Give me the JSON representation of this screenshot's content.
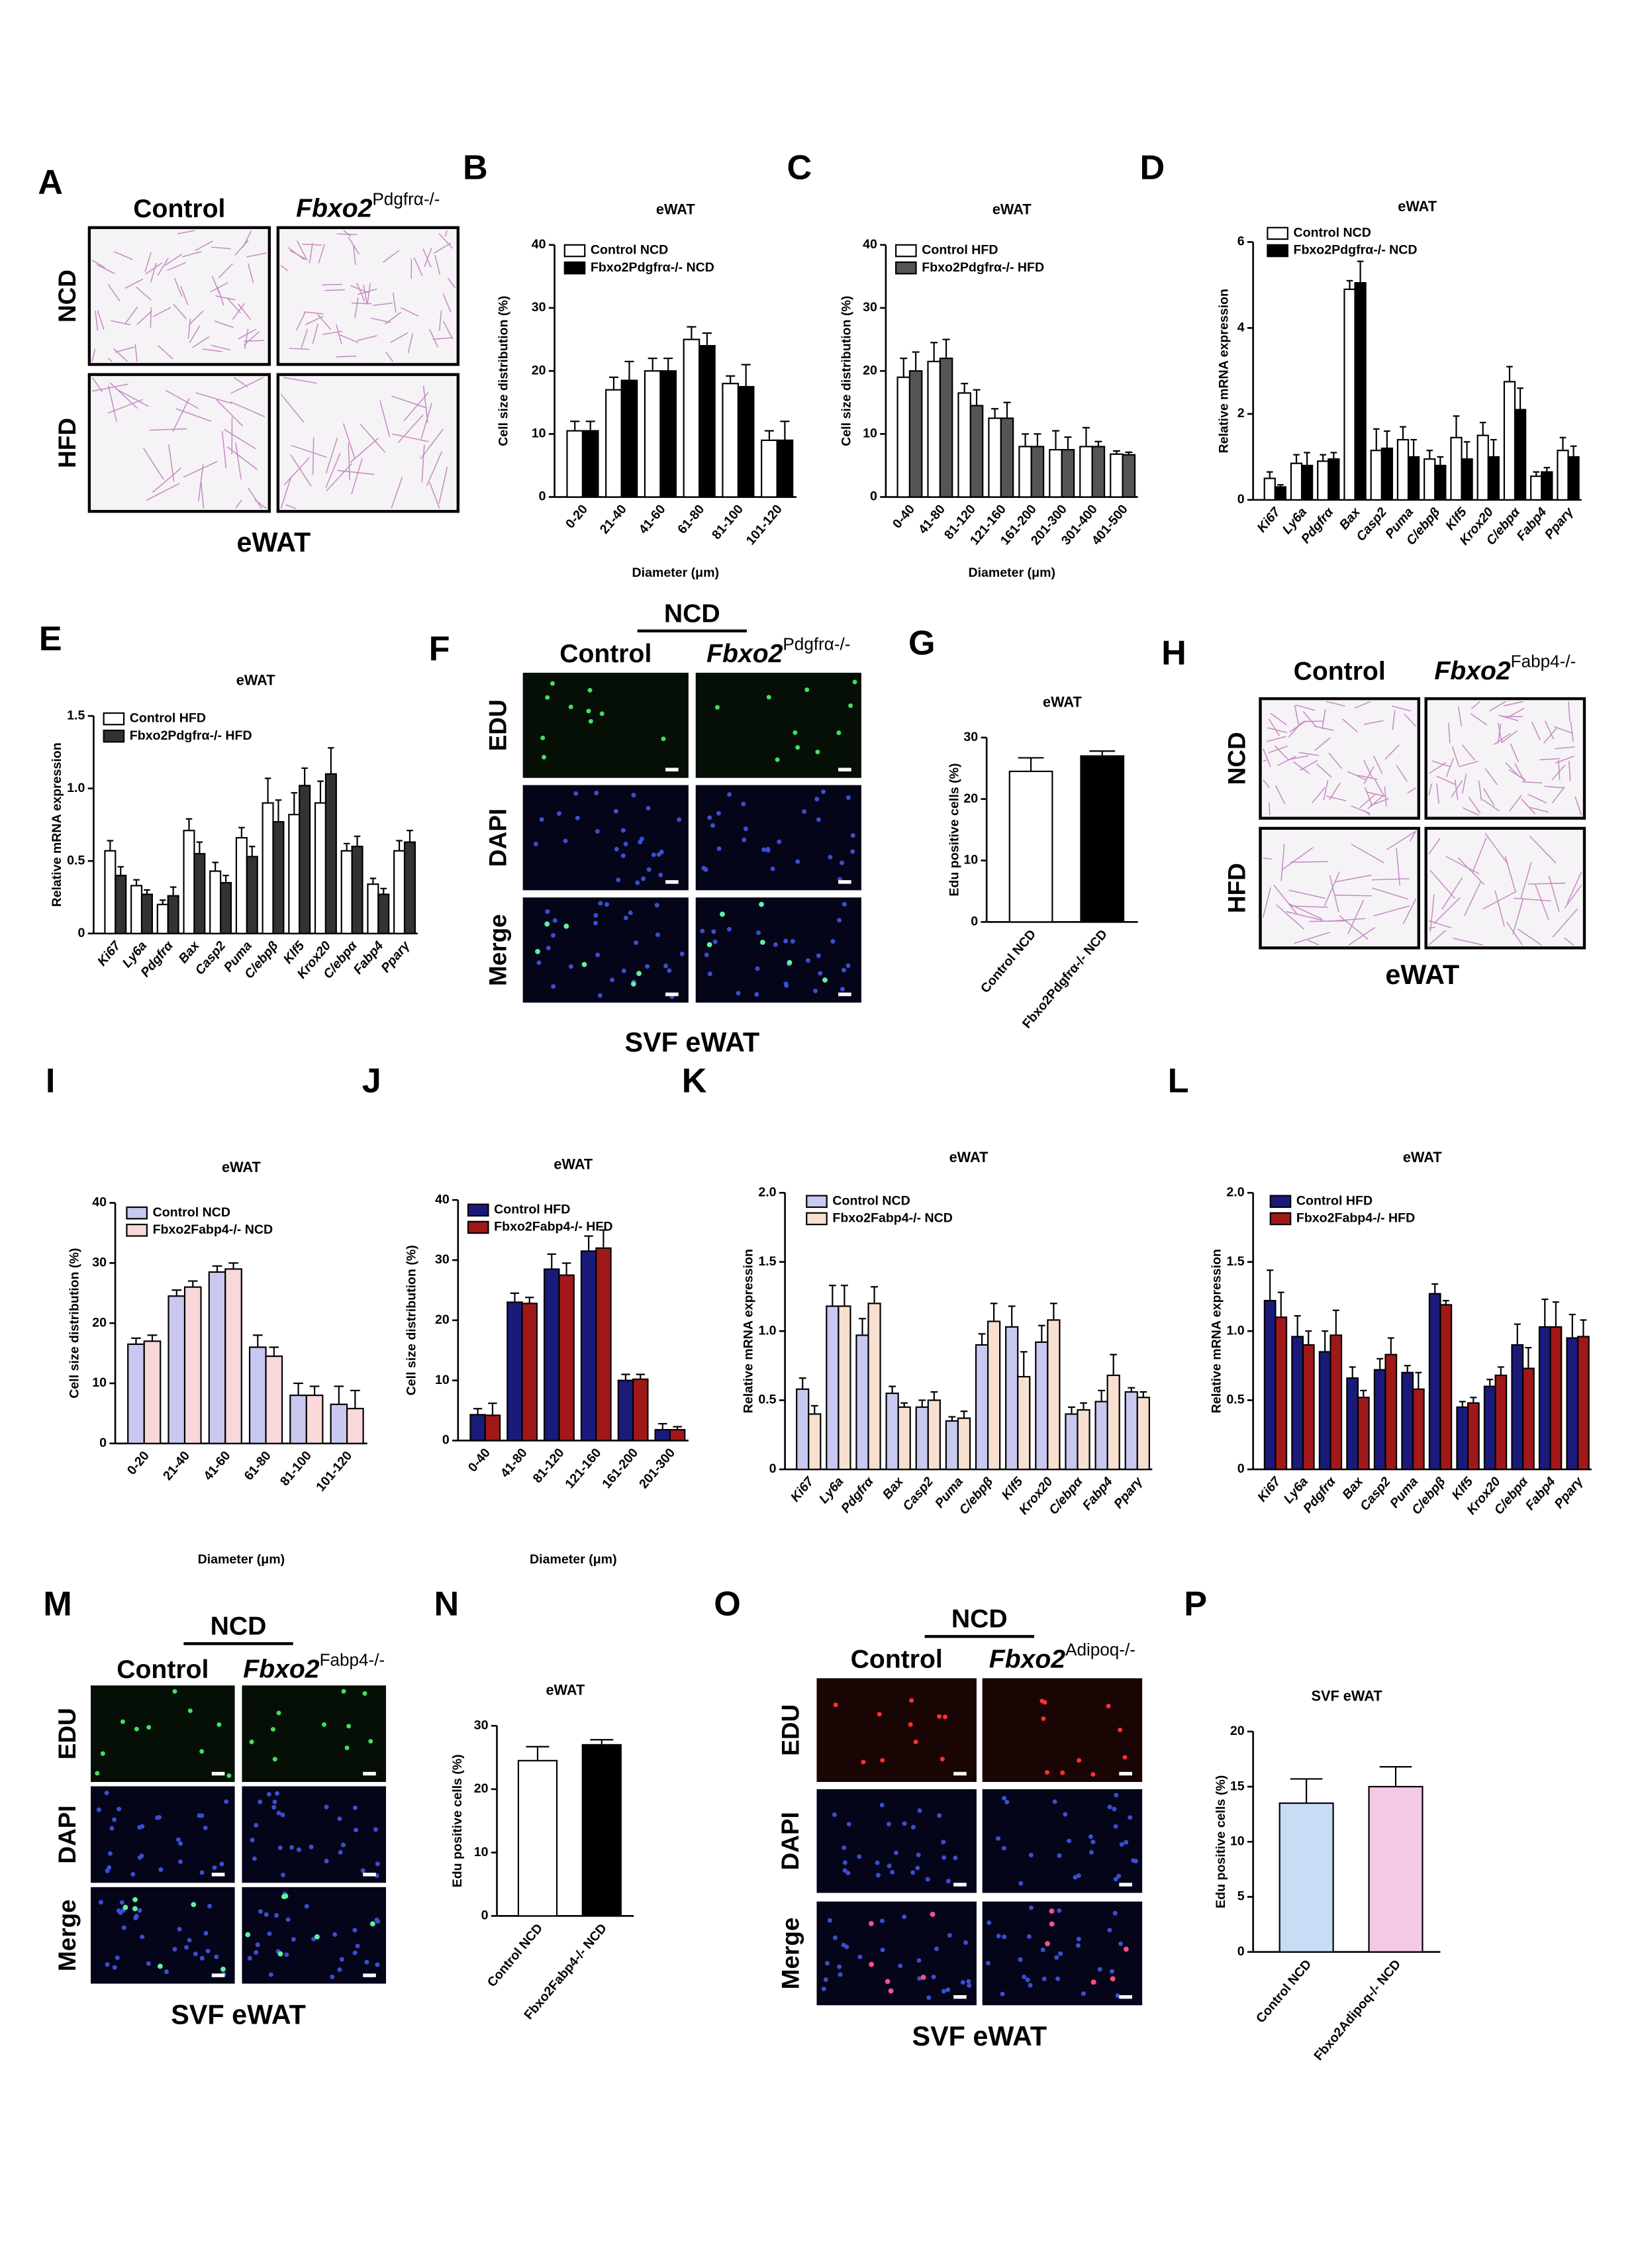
{
  "images": [
    {
      "label": "A",
      "columns": [
        {
          "text": "Control"
        },
        {
          "gene": "Fbxo2",
          "sup": "Pdgfrα-/-"
        }
      ],
      "rows": [
        "NCD",
        "HFD"
      ],
      "caption": "eWAT"
    },
    {
      "label": "F",
      "group": "NCD",
      "columns": [
        {
          "text": "Control"
        },
        {
          "gene": "Fbxo2",
          "sup": "Pdgfrα-/-"
        }
      ],
      "rows": [
        "EDU",
        "DAPI",
        "Merge"
      ],
      "row_colors": [
        "#3a8a2a",
        "#2a3fa0",
        "#c8a020"
      ],
      "caption": "SVF eWAT"
    },
    {
      "label": "H",
      "columns": [
        {
          "text": "Control"
        },
        {
          "gene": "Fbxo2",
          "sup": "Fabp4-/-"
        }
      ],
      "rows": [
        "NCD",
        "HFD"
      ],
      "caption": "eWAT"
    },
    {
      "label": "M",
      "group": "NCD",
      "columns": [
        {
          "text": "Control"
        },
        {
          "gene": "Fbxo2",
          "sup": "Fabp4-/-"
        }
      ],
      "rows": [
        "EDU",
        "DAPI",
        "Merge"
      ],
      "row_colors": [
        "#3a8a2a",
        "#2a3fa0",
        "#c8a020"
      ],
      "caption": "SVF eWAT"
    },
    {
      "label": "O",
      "group": "NCD",
      "columns": [
        {
          "text": "Control"
        },
        {
          "gene": "Fbxo2",
          "sup": "Adipoq-/-"
        }
      ],
      "rows": [
        "EDU",
        "DAPI",
        "Merge"
      ],
      "row_colors": [
        "#e02020",
        "#2a3fa0",
        "#7a3fb0"
      ],
      "caption": "SVF eWAT"
    }
  ],
  "chart_data": [
    {
      "label": "B",
      "type": "bar",
      "title": "eWAT",
      "y_label": "Cell size distribution (%)",
      "x_label": "Diameter (μm)",
      "categories": [
        "0-20",
        "21-40",
        "41-60",
        "61-80",
        "81-100",
        "101-120"
      ],
      "series": [
        {
          "name": "Control NCD",
          "color": "#ffffff",
          "values": [
            10.5,
            17,
            20,
            25,
            18,
            9
          ],
          "errors": [
            1.5,
            2,
            2,
            2,
            1.2,
            1.5
          ]
        },
        {
          "name": "Fbxo2Pdgfrα-/- NCD",
          "color": "#000000",
          "values": [
            10.5,
            18.5,
            20,
            24,
            17.5,
            9
          ],
          "errors": [
            1.5,
            3,
            2,
            2,
            3.5,
            3
          ]
        }
      ],
      "ylim": [
        0,
        40
      ],
      "yticks": [
        0,
        10,
        20,
        30,
        40
      ]
    },
    {
      "label": "C",
      "type": "bar",
      "title": "eWAT",
      "y_label": "Cell size distribution (%)",
      "x_label": "Diameter (μm)",
      "categories": [
        "0-40",
        "41-80",
        "81-120",
        "121-160",
        "161-200",
        "201-300",
        "301-400",
        "401-500"
      ],
      "series": [
        {
          "name": "Control HFD",
          "color": "#ffffff",
          "values": [
            19,
            21.5,
            16.5,
            12.5,
            8,
            7.5,
            8,
            6.8
          ],
          "errors": [
            3,
            3,
            1.5,
            1.5,
            2,
            3,
            3,
            0.5
          ]
        },
        {
          "name": "Fbxo2Pdgfrα-/- HFD",
          "color": "#555555",
          "values": [
            20,
            22,
            14.5,
            12.5,
            8,
            7.5,
            8,
            6.7
          ],
          "errors": [
            3,
            3,
            2.5,
            2.5,
            2,
            2,
            0.8,
            0.4
          ]
        }
      ],
      "ylim": [
        0,
        40
      ],
      "yticks": [
        0,
        10,
        20,
        30,
        40
      ]
    },
    {
      "label": "D",
      "type": "bar",
      "title": "eWAT",
      "y_label": "Relative mRNA expression",
      "x_italic": true,
      "categories": [
        "Ki67",
        "Ly6a",
        "Pdgfrα",
        "Bax",
        "Casp2",
        "Puma",
        "C/ebpβ",
        "Klf5",
        "Krox20",
        "C/ebpα",
        "Fabp4",
        "Pparγ"
      ],
      "series": [
        {
          "name": "Control NCD",
          "color": "#ffffff",
          "values": [
            0.5,
            0.85,
            0.9,
            4.9,
            1.15,
            1.4,
            0.95,
            1.45,
            1.5,
            2.75,
            0.55,
            1.15
          ],
          "errors": [
            0.15,
            0.2,
            0.15,
            0.2,
            0.5,
            0.3,
            0.2,
            0.5,
            0.3,
            0.35,
            0.1,
            0.3
          ]
        },
        {
          "name": "Fbxo2Pdgfrα-/- NCD",
          "color": "#000000",
          "values": [
            0.3,
            0.8,
            0.95,
            5.05,
            1.2,
            1.0,
            0.8,
            0.95,
            1.0,
            2.1,
            0.65,
            1.0
          ],
          "errors": [
            0.05,
            0.3,
            0.15,
            0.5,
            0.4,
            0.4,
            0.2,
            0.4,
            0.4,
            0.5,
            0.1,
            0.25
          ]
        }
      ],
      "ylim": [
        0,
        6
      ],
      "yticks": [
        0,
        2,
        4,
        6
      ]
    },
    {
      "label": "E",
      "type": "bar",
      "title": "eWAT",
      "y_label": "Relative mRNA expression",
      "x_italic": true,
      "categories": [
        "Ki67",
        "Ly6a",
        "Pdgfrα",
        "Bax",
        "Casp2",
        "Puma",
        "C/ebpβ",
        "Klf5",
        "Krox20",
        "C/ebpα",
        "Fabp4",
        "Pparγ"
      ],
      "series": [
        {
          "name": "Control HFD",
          "color": "#ffffff",
          "values": [
            0.57,
            0.33,
            0.2,
            0.71,
            0.43,
            0.66,
            0.9,
            0.82,
            0.9,
            0.57,
            0.34,
            0.57
          ],
          "errors": [
            0.07,
            0.04,
            0.03,
            0.08,
            0.06,
            0.07,
            0.17,
            0.15,
            0.15,
            0.05,
            0.04,
            0.07
          ]
        },
        {
          "name": "Fbxo2Pdgfrα-/- HFD",
          "color": "#333333",
          "values": [
            0.4,
            0.27,
            0.26,
            0.55,
            0.35,
            0.53,
            0.77,
            1.02,
            1.1,
            0.6,
            0.27,
            0.63
          ],
          "errors": [
            0.06,
            0.03,
            0.06,
            0.08,
            0.05,
            0.07,
            0.15,
            0.12,
            0.18,
            0.07,
            0.04,
            0.08
          ]
        }
      ],
      "ylim": [
        0,
        1.5
      ],
      "yticks": [
        0,
        0.5,
        {
          "value": 1,
          "label": "1.0"
        },
        1.5
      ]
    },
    {
      "label": "G",
      "type": "bar",
      "title": "eWAT",
      "y_label": "Edu positive cells (%)",
      "categories": [
        "Control NCD",
        "Fbxo2Pdgfrα-/- NCD"
      ],
      "values": [
        24.5,
        27
      ],
      "errors": [
        2.2,
        0.8
      ],
      "colors": [
        "#ffffff",
        "#000000"
      ],
      "ylim": [
        0,
        30
      ],
      "yticks": [
        0,
        10,
        20,
        30
      ]
    },
    {
      "label": "I",
      "type": "bar",
      "title": "eWAT",
      "y_label": "Cell size distribution (%)",
      "x_label": "Diameter (μm)",
      "categories": [
        "0-20",
        "21-40",
        "41-60",
        "61-80",
        "81-100",
        "101-120"
      ],
      "series": [
        {
          "name": "Control NCD",
          "color": "#c8c8f0",
          "values": [
            16.5,
            24.5,
            28.5,
            16,
            8,
            6.5
          ],
          "errors": [
            1,
            1,
            1,
            2,
            2,
            3
          ]
        },
        {
          "name": "Fbxo2Fabp4-/- NCD",
          "color": "#f8d8d8",
          "values": [
            17,
            26,
            29,
            14.5,
            8,
            5.8
          ],
          "errors": [
            1,
            1,
            1,
            1.5,
            1.5,
            3
          ]
        }
      ],
      "ylim": [
        0,
        40
      ],
      "yticks": [
        0,
        10,
        20,
        30,
        40
      ]
    },
    {
      "label": "J",
      "type": "bar",
      "title": "eWAT",
      "y_label": "Cell size distribution (%)",
      "x_label": "Diameter (μm)",
      "categories": [
        "0-40",
        "41-80",
        "81-120",
        "121-160",
        "161-200",
        "201-300"
      ],
      "series": [
        {
          "name": "Control HFD",
          "color": "#1a1a7a",
          "values": [
            4.3,
            23,
            28.5,
            31.5,
            10,
            1.8
          ],
          "errors": [
            1,
            1.5,
            2.5,
            2.5,
            1,
            1
          ]
        },
        {
          "name": "Fbxo2Fabp4-/- HFD",
          "color": "#a01818",
          "values": [
            4.2,
            22.8,
            27.5,
            32,
            10.2,
            1.8
          ],
          "errors": [
            2,
            1,
            2,
            3,
            0.8,
            0.5
          ]
        }
      ],
      "ylim": [
        0,
        40
      ],
      "yticks": [
        0,
        10,
        20,
        30,
        40
      ]
    },
    {
      "label": "K",
      "type": "bar",
      "title": "eWAT",
      "y_label": "Relative mRNA expression",
      "x_italic": true,
      "categories": [
        "Ki67",
        "Ly6a",
        "Pdgfrα",
        "Bax",
        "Casp2",
        "Puma",
        "C/ebpβ",
        "Klf5",
        "Krox20",
        "C/ebpα",
        "Fabp4",
        "Pparγ"
      ],
      "series": [
        {
          "name": "Control NCD",
          "color": "#c8c8f0",
          "values": [
            0.58,
            1.18,
            0.97,
            0.55,
            0.45,
            0.35,
            0.9,
            1.03,
            0.92,
            0.4,
            0.49,
            0.56
          ],
          "errors": [
            0.08,
            0.15,
            0.12,
            0.05,
            0.05,
            0.03,
            0.08,
            0.15,
            0.12,
            0.05,
            0.08,
            0.03
          ]
        },
        {
          "name": "Fbxo2Fabp4-/- NCD",
          "color": "#f8e0d0",
          "values": [
            0.4,
            1.18,
            1.2,
            0.45,
            0.5,
            0.37,
            1.07,
            0.67,
            1.08,
            0.43,
            0.68,
            0.52
          ],
          "errors": [
            0.06,
            0.15,
            0.12,
            0.03,
            0.06,
            0.05,
            0.13,
            0.18,
            0.12,
            0.05,
            0.15,
            0.04
          ]
        }
      ],
      "ylim": [
        0,
        2
      ],
      "yticks": [
        0,
        0.5,
        {
          "value": 1,
          "label": "1.0"
        },
        1.5,
        {
          "value": 2,
          "label": "2.0"
        }
      ]
    },
    {
      "label": "L",
      "type": "bar",
      "title": "eWAT",
      "y_label": "Relative mRNA expression",
      "x_italic": true,
      "categories": [
        "Ki67",
        "Ly6a",
        "Pdgfrα",
        "Bax",
        "Casp2",
        "Puma",
        "C/ebpβ",
        "Klf5",
        "Krox20",
        "C/ebpα",
        "Fabp4",
        "Pparγ"
      ],
      "series": [
        {
          "name": "Control HFD",
          "color": "#1a1a7a",
          "values": [
            1.22,
            0.96,
            0.85,
            0.66,
            0.72,
            0.7,
            1.27,
            0.45,
            0.6,
            0.9,
            1.03,
            0.95
          ],
          "errors": [
            0.22,
            0.15,
            0.15,
            0.08,
            0.08,
            0.05,
            0.07,
            0.04,
            0.05,
            0.15,
            0.2,
            0.17
          ]
        },
        {
          "name": "Fbxo2Fabp4-/- HFD",
          "color": "#a01818",
          "values": [
            1.1,
            0.9,
            0.97,
            0.52,
            0.83,
            0.58,
            1.19,
            0.48,
            0.68,
            0.73,
            1.03,
            0.96
          ],
          "errors": [
            0.18,
            0.1,
            0.18,
            0.05,
            0.12,
            0.12,
            0.03,
            0.04,
            0.06,
            0.15,
            0.18,
            0.12
          ]
        }
      ],
      "ylim": [
        0,
        2
      ],
      "yticks": [
        0,
        0.5,
        {
          "value": 1,
          "label": "1.0"
        },
        1.5,
        {
          "value": 2,
          "label": "2.0"
        }
      ]
    },
    {
      "label": "N",
      "type": "bar",
      "title": "eWAT",
      "y_label": "Edu positive cells (%)",
      "categories": [
        "Control NCD",
        "Fbxo2Fabp4-/- NCD"
      ],
      "values": [
        24.5,
        27
      ],
      "errors": [
        2.2,
        0.8
      ],
      "colors": [
        "#ffffff",
        "#000000"
      ],
      "ylim": [
        0,
        30
      ],
      "yticks": [
        0,
        10,
        20,
        30
      ]
    },
    {
      "label": "P",
      "type": "bar",
      "title": "SVF eWAT",
      "y_label": "Edu positive cells (%)",
      "categories": [
        "Control NCD",
        "Fbxo2Adipoq-/- NCD"
      ],
      "values": [
        13.5,
        15
      ],
      "errors": [
        2.2,
        1.8
      ],
      "colors": [
        "#c8dcf5",
        "#f5c8e8"
      ],
      "ylim": [
        0,
        20
      ],
      "yticks": [
        0,
        5,
        10,
        15,
        20
      ]
    }
  ]
}
